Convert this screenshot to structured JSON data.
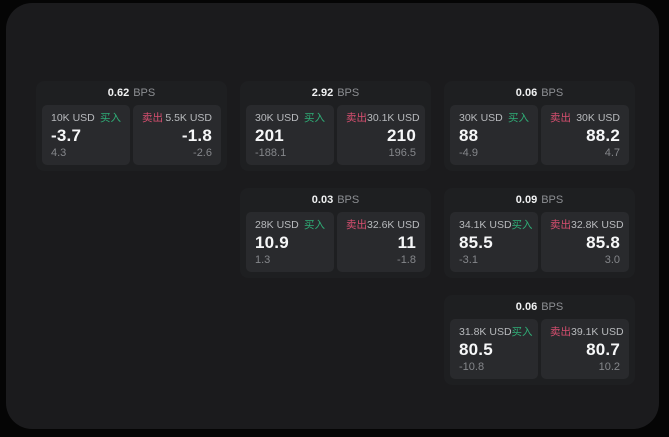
{
  "labels": {
    "buy": "买入",
    "sell": "卖出",
    "bps": "BPS"
  },
  "colors": {
    "background": "#050505",
    "surface": "#1b1b1d",
    "card": "#1e1f21",
    "panel": "#292a2d",
    "buy": "#2fae77",
    "sell": "#d84f70",
    "price_text": "#f6f7f8",
    "muted_text": "#85878b"
  },
  "cards": [
    {
      "bps": "0.62",
      "buy": {
        "volume": "10K USD",
        "price": "-3.7",
        "delta": "4.3"
      },
      "sell": {
        "volume": "5.5K USD",
        "price": "-1.8",
        "delta": "-2.6"
      }
    },
    {
      "bps": "2.92",
      "buy": {
        "volume": "30K USD",
        "price": "201",
        "delta": "-188.1"
      },
      "sell": {
        "volume": "30.1K USD",
        "price": "210",
        "delta": "196.5"
      }
    },
    {
      "bps": "0.06",
      "buy": {
        "volume": "30K USD",
        "price": "88",
        "delta": "-4.9"
      },
      "sell": {
        "volume": "30K USD",
        "price": "88.2",
        "delta": "4.7"
      }
    },
    {
      "bps": "0.03",
      "buy": {
        "volume": "28K USD",
        "price": "10.9",
        "delta": "1.3"
      },
      "sell": {
        "volume": "32.6K USD",
        "price": "11",
        "delta": "-1.8"
      }
    },
    {
      "bps": "0.09",
      "buy": {
        "volume": "34.1K USD",
        "price": "85.5",
        "delta": "-3.1"
      },
      "sell": {
        "volume": "32.8K USD",
        "price": "85.8",
        "delta": "3.0"
      }
    },
    {
      "bps": "0.06",
      "buy": {
        "volume": "31.8K USD",
        "price": "80.5",
        "delta": "-10.8"
      },
      "sell": {
        "volume": "39.1K USD",
        "price": "80.7",
        "delta": "10.2"
      }
    }
  ]
}
